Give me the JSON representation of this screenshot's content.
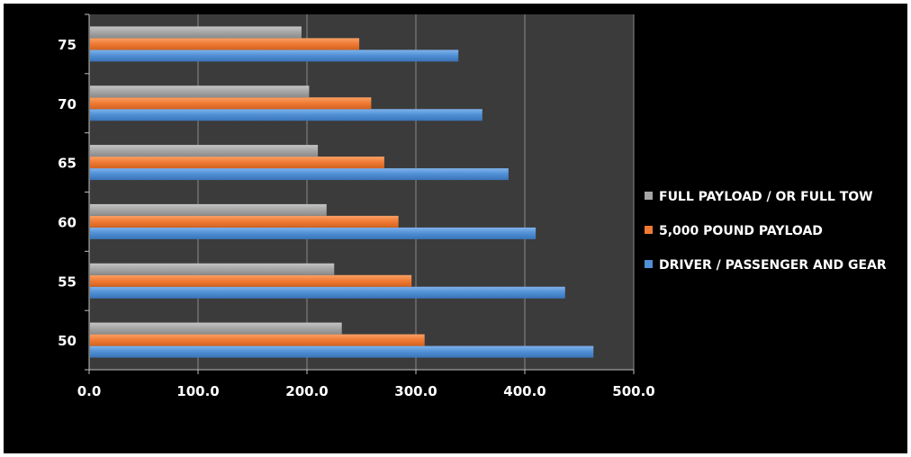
{
  "chart_data": {
    "type": "bar",
    "orientation": "horizontal",
    "title": "",
    "xlabel": "",
    "ylabel": "",
    "categories": [
      "50",
      "55",
      "60",
      "65",
      "70",
      "75"
    ],
    "xlim": [
      0,
      500
    ],
    "x_ticks": [
      "0.0",
      "100.0",
      "200.0",
      "300.0",
      "400.0",
      "500.0"
    ],
    "grid": "vertical major gridlines",
    "legend_position": "right",
    "series": [
      {
        "name": "DRIVER / PASSENGER AND GEAR",
        "color": "#4f8fd4",
        "values": [
          463,
          437,
          410,
          385,
          361,
          339
        ]
      },
      {
        "name": "5,000 POUND PAYLOAD",
        "color": "#f07a33",
        "values": [
          308,
          296,
          284,
          271,
          259,
          248
        ]
      },
      {
        "name": "FULL PAYLOAD / OR FULL TOW",
        "color": "#a5a5a5",
        "values": [
          232,
          225,
          218,
          210,
          202,
          195
        ]
      }
    ]
  }
}
